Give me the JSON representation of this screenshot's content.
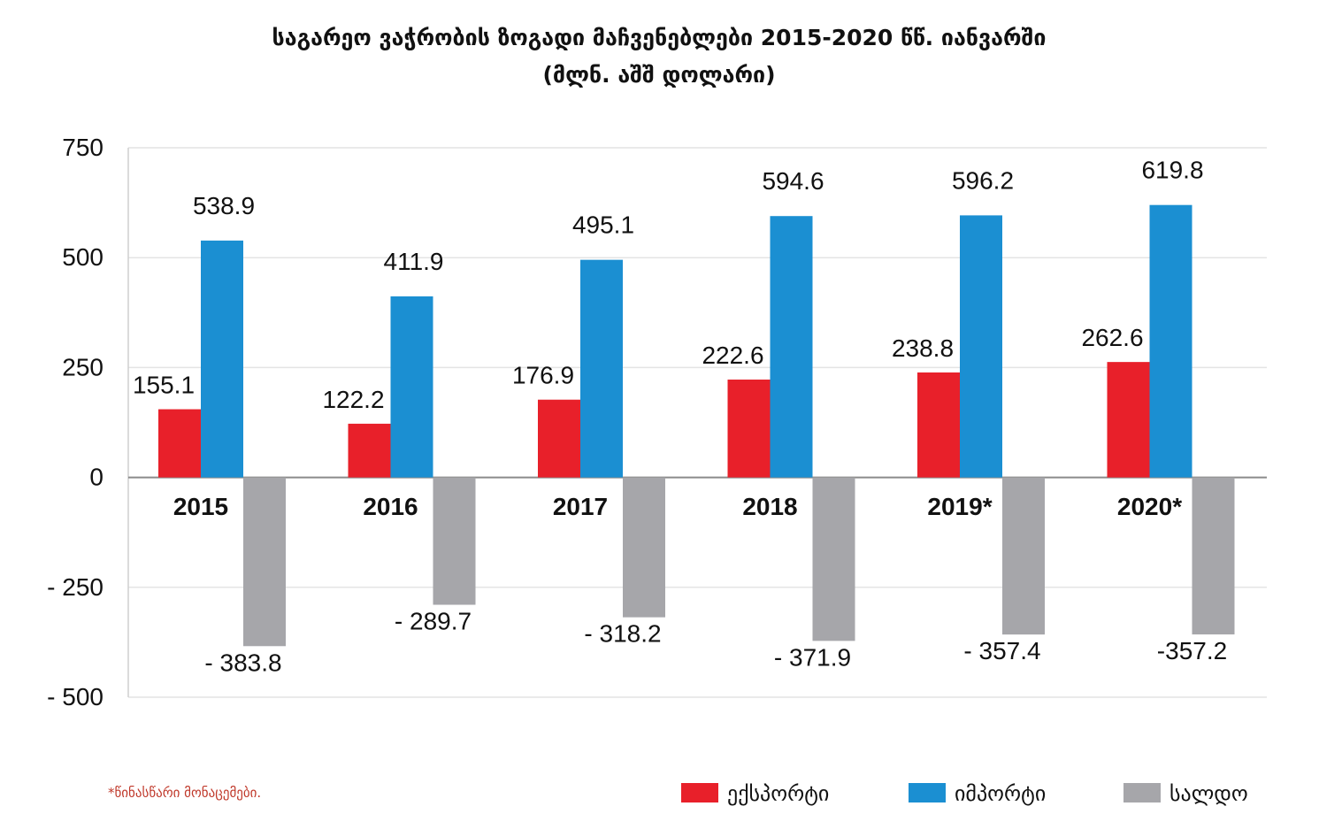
{
  "chart_data": {
    "type": "bar",
    "title": "საგარეო ვაჭრობის ზოგადი მაჩვენებლები 2015-2020 წწ. იანვარში",
    "subtitle": "(მლნ. აშშ დოლარი)",
    "categories": [
      "2015",
      "2016",
      "2017",
      "2018",
      "2019*",
      "2020*"
    ],
    "series": [
      {
        "name": "ექსპორტი",
        "color": "#e8202a",
        "values": [
          155.1,
          122.2,
          176.9,
          222.6,
          238.8,
          262.6
        ],
        "labels": [
          "155.1",
          "122.2",
          "176.9",
          "222.6",
          "238.8",
          "262.6"
        ]
      },
      {
        "name": "იმპორტი",
        "color": "#1b8fd2",
        "values": [
          538.9,
          411.9,
          495.1,
          594.6,
          596.2,
          619.8
        ],
        "labels": [
          "538.9",
          "411.9",
          "495.1",
          "594.6",
          "596.2",
          "619.8"
        ]
      },
      {
        "name": "სალდო",
        "color": "#a6a6aa",
        "values": [
          -383.8,
          -289.7,
          -318.2,
          -371.9,
          -357.4,
          -357.2
        ],
        "labels": [
          "- 383.8",
          "- 289.7",
          "- 318.2",
          "- 371.9",
          "- 357.4",
          "-357.2"
        ]
      }
    ],
    "ylim": [
      -500,
      750
    ],
    "yticks": [
      750,
      500,
      250,
      0,
      -250,
      -500
    ],
    "ytick_labels": [
      "750",
      "500",
      "250",
      "0",
      "- 250",
      "- 500"
    ],
    "grid": true,
    "legend_position": "bottom-right",
    "footnote": "*წინასწარი მონაცემები."
  }
}
